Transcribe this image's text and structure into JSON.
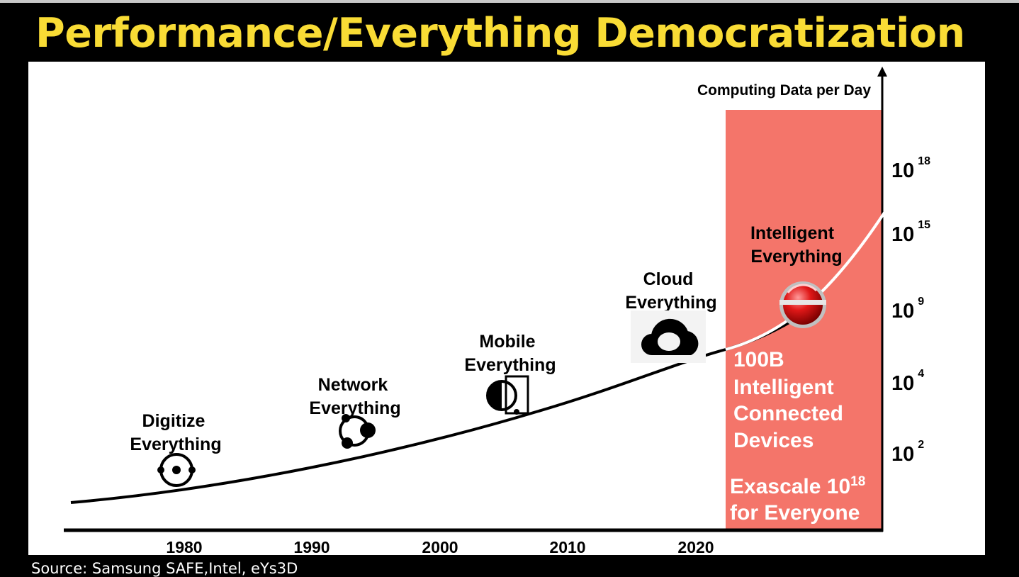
{
  "title": "Performance/Everything Democratization",
  "source": "Source: Samsung SAFE,Intel, eYs3D",
  "chart_data": {
    "type": "line",
    "ylabel": "Computing Data per Day",
    "x_ticks": [
      "1980",
      "1990",
      "2000",
      "2010",
      "2020"
    ],
    "y_ticks": [
      {
        "base": "10",
        "exp": "2"
      },
      {
        "base": "10",
        "exp": "4"
      },
      {
        "base": "10",
        "exp": "9"
      },
      {
        "base": "10",
        "exp": "15"
      },
      {
        "base": "10",
        "exp": "18"
      }
    ],
    "eras": [
      {
        "line1": "Digitize",
        "line2": "Everything",
        "icon": "digitize-icon"
      },
      {
        "line1": "Network",
        "line2": "Everything",
        "icon": "network-icon"
      },
      {
        "line1": "Mobile",
        "line2": "Everything",
        "icon": "mobile-icon"
      },
      {
        "line1": "Cloud",
        "line2": "Everything",
        "icon": "cloud-icon"
      },
      {
        "line1": "Intelligent",
        "line2": "Everything",
        "icon": "intelligent-sphere-icon"
      }
    ],
    "highlight": {
      "color": "#f4756a",
      "lines": [
        "100B",
        "Intelligent",
        "Connected",
        "Devices"
      ],
      "exascale": "Exascale 10",
      "exascale_exp": "18",
      "exascale_line2": "for Everyone"
    },
    "curve": "exponential growth"
  }
}
